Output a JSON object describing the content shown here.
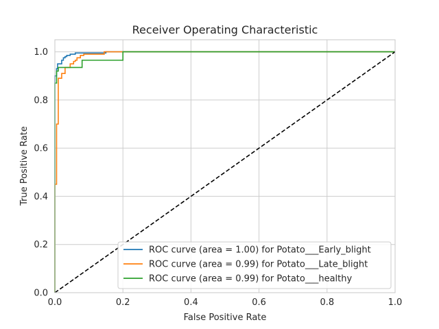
{
  "chart_data": {
    "type": "line",
    "title": "Receiver Operating Characteristic",
    "xlabel": "False Positive Rate",
    "ylabel": "True Positive Rate",
    "xlim": [
      0,
      1
    ],
    "ylim": [
      0,
      1.05
    ],
    "xticks": [
      "0.0",
      "0.2",
      "0.4",
      "0.6",
      "0.8",
      "1.0"
    ],
    "yticks": [
      "0.0",
      "0.2",
      "0.4",
      "0.6",
      "0.8",
      "1.0"
    ],
    "grid": true,
    "legend_position": "lower-right",
    "series": [
      {
        "name": "ROC curve (area = 1.00) for Potato___Early_blight",
        "color": "#1f77b4",
        "x": [
          0,
          0,
          0.005,
          0.005,
          0.008,
          0.008,
          0.02,
          0.02,
          0.025,
          0.025,
          0.03,
          0.03,
          0.035,
          0.035,
          0.045,
          0.045,
          0.06,
          0.06,
          0.11,
          0.11,
          0.15,
          0.15,
          1.0
        ],
        "y": [
          0,
          0.9,
          0.9,
          0.93,
          0.93,
          0.95,
          0.95,
          0.965,
          0.965,
          0.975,
          0.975,
          0.98,
          0.98,
          0.985,
          0.985,
          0.99,
          0.99,
          0.995,
          0.995,
          0.995,
          0.995,
          1.0,
          1.0
        ]
      },
      {
        "name": "ROC curve (area = 0.99) for Potato___Late_blight",
        "color": "#ff7f0e",
        "x": [
          0,
          0,
          0.005,
          0.005,
          0.01,
          0.01,
          0.02,
          0.02,
          0.03,
          0.03,
          0.045,
          0.045,
          0.055,
          0.055,
          0.06,
          0.06,
          0.065,
          0.065,
          0.075,
          0.075,
          0.085,
          0.085,
          0.145,
          0.145,
          1.0
        ],
        "y": [
          0,
          0.45,
          0.45,
          0.7,
          0.7,
          0.89,
          0.89,
          0.91,
          0.91,
          0.935,
          0.935,
          0.95,
          0.95,
          0.96,
          0.96,
          0.965,
          0.965,
          0.975,
          0.975,
          0.985,
          0.985,
          0.99,
          0.99,
          1.0,
          1.0
        ]
      },
      {
        "name": "ROC curve (area = 0.99) for Potato___healthy",
        "color": "#2ca02c",
        "x": [
          0,
          0,
          0.005,
          0.005,
          0.01,
          0.01,
          0.08,
          0.08,
          0.2,
          0.2,
          1.0
        ],
        "y": [
          0,
          0.87,
          0.87,
          0.92,
          0.92,
          0.935,
          0.935,
          0.965,
          0.965,
          1.0,
          1.0
        ]
      }
    ],
    "reference_line": {
      "x": [
        0,
        1
      ],
      "y": [
        0,
        1
      ],
      "color": "#000000",
      "style": "dashed"
    }
  }
}
